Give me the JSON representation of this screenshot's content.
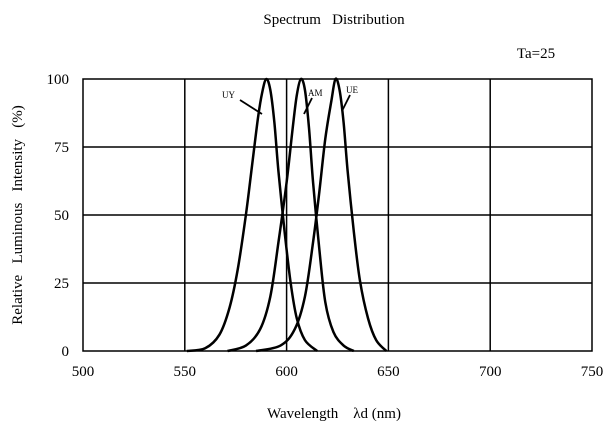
{
  "chart_data": {
    "type": "line",
    "title": "Spectrum   Distribution",
    "annotation": "Ta=25",
    "xlabel": "Wavelength    λd (nm)",
    "ylabel": "Relative   Luminous   Intensity   (%)",
    "xlim": [
      500,
      750
    ],
    "ylim": [
      0,
      100
    ],
    "xticks": [
      500,
      550,
      600,
      650,
      700,
      750
    ],
    "yticks": [
      0,
      25,
      50,
      75,
      100
    ],
    "grid": true,
    "line_color": "#000000",
    "series": [
      {
        "name": "UY",
        "points": [
          [
            551,
            0
          ],
          [
            560,
            1
          ],
          [
            567,
            6
          ],
          [
            572,
            16
          ],
          [
            576,
            30
          ],
          [
            580,
            50
          ],
          [
            583,
            68
          ],
          [
            586,
            86
          ],
          [
            588,
            95
          ],
          [
            590,
            100
          ],
          [
            592,
            96
          ],
          [
            594,
            84
          ],
          [
            596,
            66
          ],
          [
            599,
            44
          ],
          [
            602,
            25
          ],
          [
            605,
            12
          ],
          [
            609,
            4
          ],
          [
            615,
            0
          ]
        ]
      },
      {
        "name": "AM",
        "points": [
          [
            571,
            0
          ],
          [
            580,
            2
          ],
          [
            587,
            8
          ],
          [
            592,
            20
          ],
          [
            596,
            40
          ],
          [
            600,
            62
          ],
          [
            603,
            82
          ],
          [
            605,
            94
          ],
          [
            607,
            100
          ],
          [
            609,
            96
          ],
          [
            611,
            82
          ],
          [
            613,
            62
          ],
          [
            616,
            38
          ],
          [
            619,
            18
          ],
          [
            623,
            7
          ],
          [
            628,
            2
          ],
          [
            633,
            0
          ]
        ]
      },
      {
        "name": "UE",
        "points": [
          [
            585,
            0
          ],
          [
            597,
            2
          ],
          [
            604,
            8
          ],
          [
            609,
            20
          ],
          [
            613,
            40
          ],
          [
            616,
            58
          ],
          [
            619,
            78
          ],
          [
            622,
            92
          ],
          [
            624,
            100
          ],
          [
            626,
            96
          ],
          [
            628,
            84
          ],
          [
            630,
            66
          ],
          [
            633,
            44
          ],
          [
            636,
            26
          ],
          [
            640,
            12
          ],
          [
            644,
            4
          ],
          [
            649,
            0
          ]
        ]
      }
    ]
  }
}
